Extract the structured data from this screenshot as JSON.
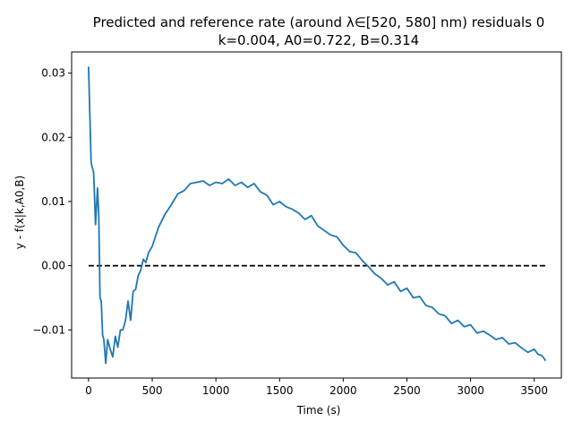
{
  "chart_data": {
    "type": "line",
    "title_line1": "Predicted and reference rate (around λ∈[520, 580] nm) residuals 0",
    "title_line2": "k=0.004, A0=0.722, B=0.314",
    "xlabel": "Time (s)",
    "ylabel": "y - f(x|k,A0,B)",
    "xlim": [
      -133,
      3713
    ],
    "ylim": [
      -0.0175,
      0.0333
    ],
    "x_ticks": [
      0,
      500,
      1000,
      1500,
      2000,
      2500,
      3000,
      3500
    ],
    "x_tick_labels": [
      "0",
      "500",
      "1000",
      "1500",
      "2000",
      "2500",
      "3000",
      "3500"
    ],
    "y_ticks": [
      -0.01,
      0.0,
      0.01,
      0.02,
      0.03
    ],
    "y_tick_labels": [
      "−0.01",
      "0.00",
      "0.01",
      "0.02",
      "0.03"
    ],
    "grid": false,
    "legend": "none",
    "colors": {
      "series": "#1f77b4",
      "reference": "#000000"
    },
    "series": [
      {
        "x": [
          0,
          20,
          40,
          55,
          70,
          80,
          90,
          100,
          110,
          120,
          135,
          150,
          170,
          190,
          210,
          230,
          250,
          270,
          290,
          310,
          330,
          350,
          370,
          390,
          410,
          430,
          450,
          470,
          500,
          550,
          600,
          650,
          700,
          750,
          800,
          850,
          900,
          950,
          1000,
          1050,
          1100,
          1150,
          1200,
          1250,
          1300,
          1350,
          1400,
          1450,
          1500,
          1550,
          1600,
          1650,
          1700,
          1750,
          1800,
          1850,
          1900,
          1950,
          2000,
          2050,
          2100,
          2150,
          2200,
          2250,
          2300,
          2350,
          2400,
          2450,
          2500,
          2550,
          2600,
          2650,
          2700,
          2750,
          2800,
          2850,
          2900,
          2950,
          3000,
          3050,
          3100,
          3150,
          3200,
          3250,
          3300,
          3350,
          3400,
          3450,
          3500,
          3530,
          3560,
          3590
        ],
        "y": [
          0.031,
          0.016,
          0.0145,
          0.0064,
          0.0121,
          0.008,
          -0.005,
          -0.0055,
          -0.0108,
          -0.0115,
          -0.0152,
          -0.0115,
          -0.013,
          -0.0142,
          -0.011,
          -0.0127,
          -0.01,
          -0.01,
          -0.0085,
          -0.0055,
          -0.0085,
          -0.004,
          -0.0037,
          -0.0015,
          -0.0007,
          0.001,
          0.0005,
          0.002,
          0.003,
          0.006,
          0.008,
          0.0095,
          0.0112,
          0.0117,
          0.0128,
          0.013,
          0.0132,
          0.0125,
          0.013,
          0.0128,
          0.0135,
          0.0125,
          0.013,
          0.0122,
          0.0128,
          0.0115,
          0.011,
          0.0095,
          0.01,
          0.0092,
          0.0088,
          0.0082,
          0.0072,
          0.0078,
          0.0062,
          0.0055,
          0.0048,
          0.0045,
          0.0032,
          0.0022,
          0.002,
          0.0008,
          -0.0002,
          -0.0013,
          -0.002,
          -0.003,
          -0.0025,
          -0.004,
          -0.0035,
          -0.005,
          -0.0048,
          -0.0062,
          -0.0065,
          -0.0075,
          -0.0078,
          -0.009,
          -0.0085,
          -0.0095,
          -0.0092,
          -0.0105,
          -0.0102,
          -0.0108,
          -0.0115,
          -0.0112,
          -0.0122,
          -0.012,
          -0.0128,
          -0.0135,
          -0.013,
          -0.0138,
          -0.014,
          -0.0148
        ]
      }
    ],
    "reference_line": {
      "x": [
        0,
        3590
      ],
      "y": [
        0.0,
        0.0
      ]
    }
  }
}
